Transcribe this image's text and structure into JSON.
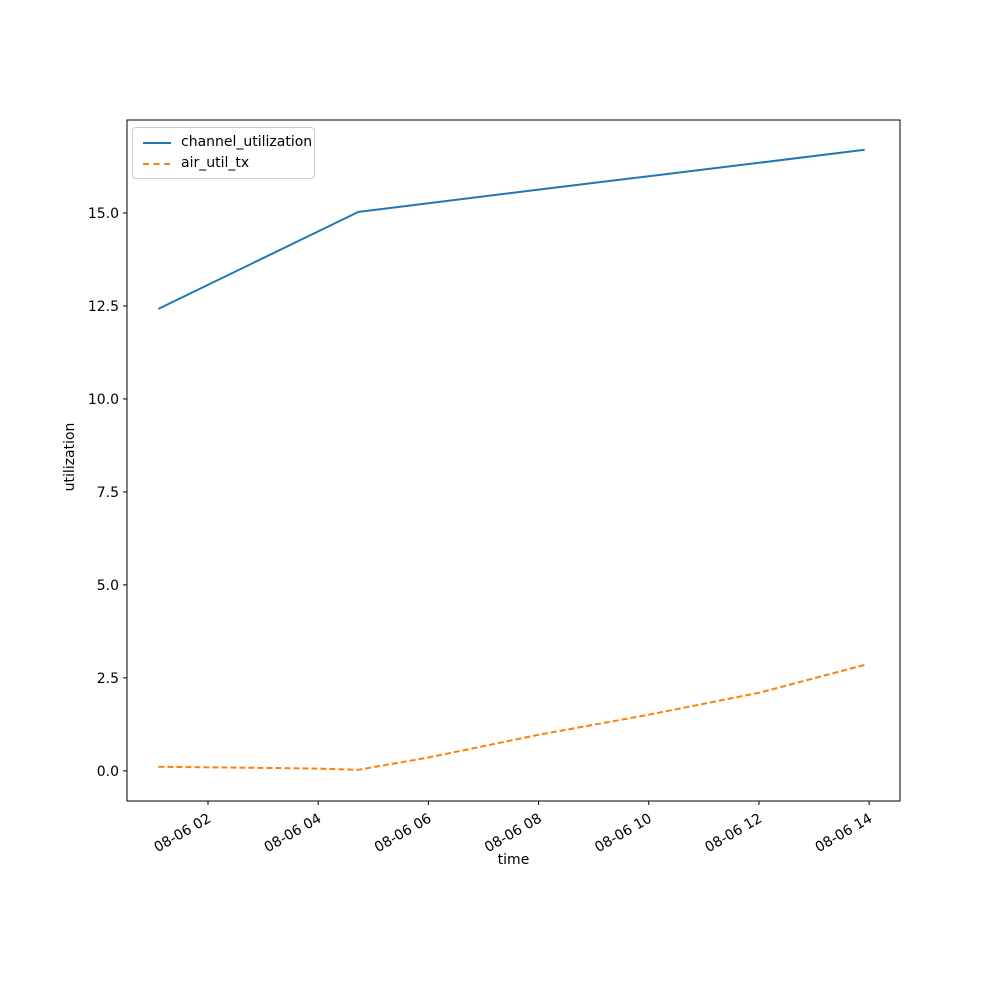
{
  "figure": {
    "background": "#ffffff",
    "text_color": "#000000",
    "spine_color": "#000000"
  },
  "chart_data": {
    "type": "line",
    "title": "",
    "xlabel": "time",
    "ylabel": "utilization",
    "grid": false,
    "xlim": [
      0.53,
      14.56
    ],
    "ylim": [
      -0.81,
      17.5
    ],
    "x_ticks": {
      "values": [
        2,
        4,
        6,
        8,
        10,
        12,
        14
      ],
      "labels": [
        "08-06 02",
        "08-06 04",
        "08-06 06",
        "08-06 08",
        "08-06 10",
        "08-06 12",
        "08-06 14"
      ],
      "rotation_deg": 30
    },
    "y_ticks": {
      "values": [
        0.0,
        2.5,
        5.0,
        7.5,
        10.0,
        12.5,
        15.0
      ],
      "labels": [
        "0.0",
        "2.5",
        "5.0",
        "7.5",
        "10.0",
        "12.5",
        "15.0"
      ]
    },
    "legend": {
      "position": "upper left"
    },
    "series": [
      {
        "name": "channel_utilization",
        "color": "#1f77b4",
        "style": "solid",
        "x": [
          1.1,
          4.73,
          6.0,
          8.0,
          10.0,
          12.0,
          13.92
        ],
        "y": [
          12.42,
          15.03,
          15.26,
          15.63,
          15.99,
          16.35,
          16.7
        ]
      },
      {
        "name": "air_util_tx",
        "color": "#ff7f0e",
        "style": "dashed",
        "x": [
          1.1,
          3.0,
          4.0,
          4.73,
          6.0,
          8.0,
          10.0,
          12.0,
          13.92
        ],
        "y": [
          0.11,
          0.08,
          0.06,
          0.03,
          0.36,
          0.97,
          1.51,
          2.1,
          2.85
        ]
      }
    ]
  }
}
